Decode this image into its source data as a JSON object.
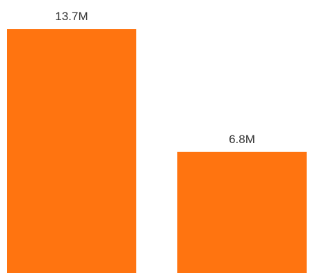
{
  "chart_data": {
    "type": "bar",
    "title": "",
    "xlabel": "",
    "ylabel": "",
    "categories": [
      "",
      ""
    ],
    "values": [
      13.7,
      6.8
    ],
    "labels": [
      "13.7M",
      "6.8M"
    ],
    "unit": "M",
    "ylim": [
      0,
      13.7
    ],
    "grid": false,
    "legend": "none",
    "bar_color": "#ff7410",
    "label_color": "#333333"
  }
}
